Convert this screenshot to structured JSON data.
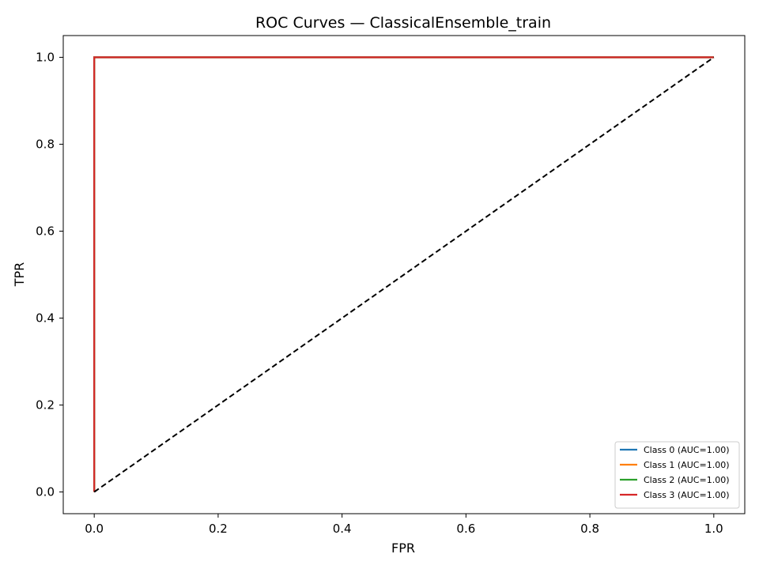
{
  "chart_data": {
    "type": "line",
    "title": "ROC Curves — ClassicalEnsemble_train",
    "xlabel": "FPR",
    "ylabel": "TPR",
    "xlim": [
      -0.05,
      1.05
    ],
    "ylim": [
      -0.05,
      1.05
    ],
    "x_ticks": [
      0.0,
      0.2,
      0.4,
      0.6,
      0.8,
      1.0
    ],
    "x_tick_labels": [
      "0.0",
      "0.2",
      "0.4",
      "0.6",
      "0.8",
      "1.0"
    ],
    "y_ticks": [
      0.0,
      0.2,
      0.4,
      0.6,
      0.8,
      1.0
    ],
    "y_tick_labels": [
      "0.0",
      "0.2",
      "0.4",
      "0.6",
      "0.8",
      "1.0"
    ],
    "grid": false,
    "legend_position": "lower-right",
    "series": [
      {
        "name": "Class 0 (AUC=1.00)",
        "color": "#1f77b4",
        "x": [
          0.0,
          0.0,
          1.0
        ],
        "y": [
          0.0,
          1.0,
          1.0
        ]
      },
      {
        "name": "Class 1 (AUC=1.00)",
        "color": "#ff7f0e",
        "x": [
          0.0,
          0.0,
          1.0
        ],
        "y": [
          0.0,
          1.0,
          1.0
        ]
      },
      {
        "name": "Class 2 (AUC=1.00)",
        "color": "#2ca02c",
        "x": [
          0.0,
          0.0,
          1.0
        ],
        "y": [
          0.0,
          1.0,
          1.0
        ]
      },
      {
        "name": "Class 3 (AUC=1.00)",
        "color": "#d62728",
        "x": [
          0.0,
          0.0,
          1.0
        ],
        "y": [
          0.0,
          1.0,
          1.0
        ]
      }
    ],
    "reference_line": {
      "x": [
        0.0,
        1.0
      ],
      "y": [
        0.0,
        1.0
      ],
      "color": "#000000",
      "style": "dashed"
    }
  }
}
